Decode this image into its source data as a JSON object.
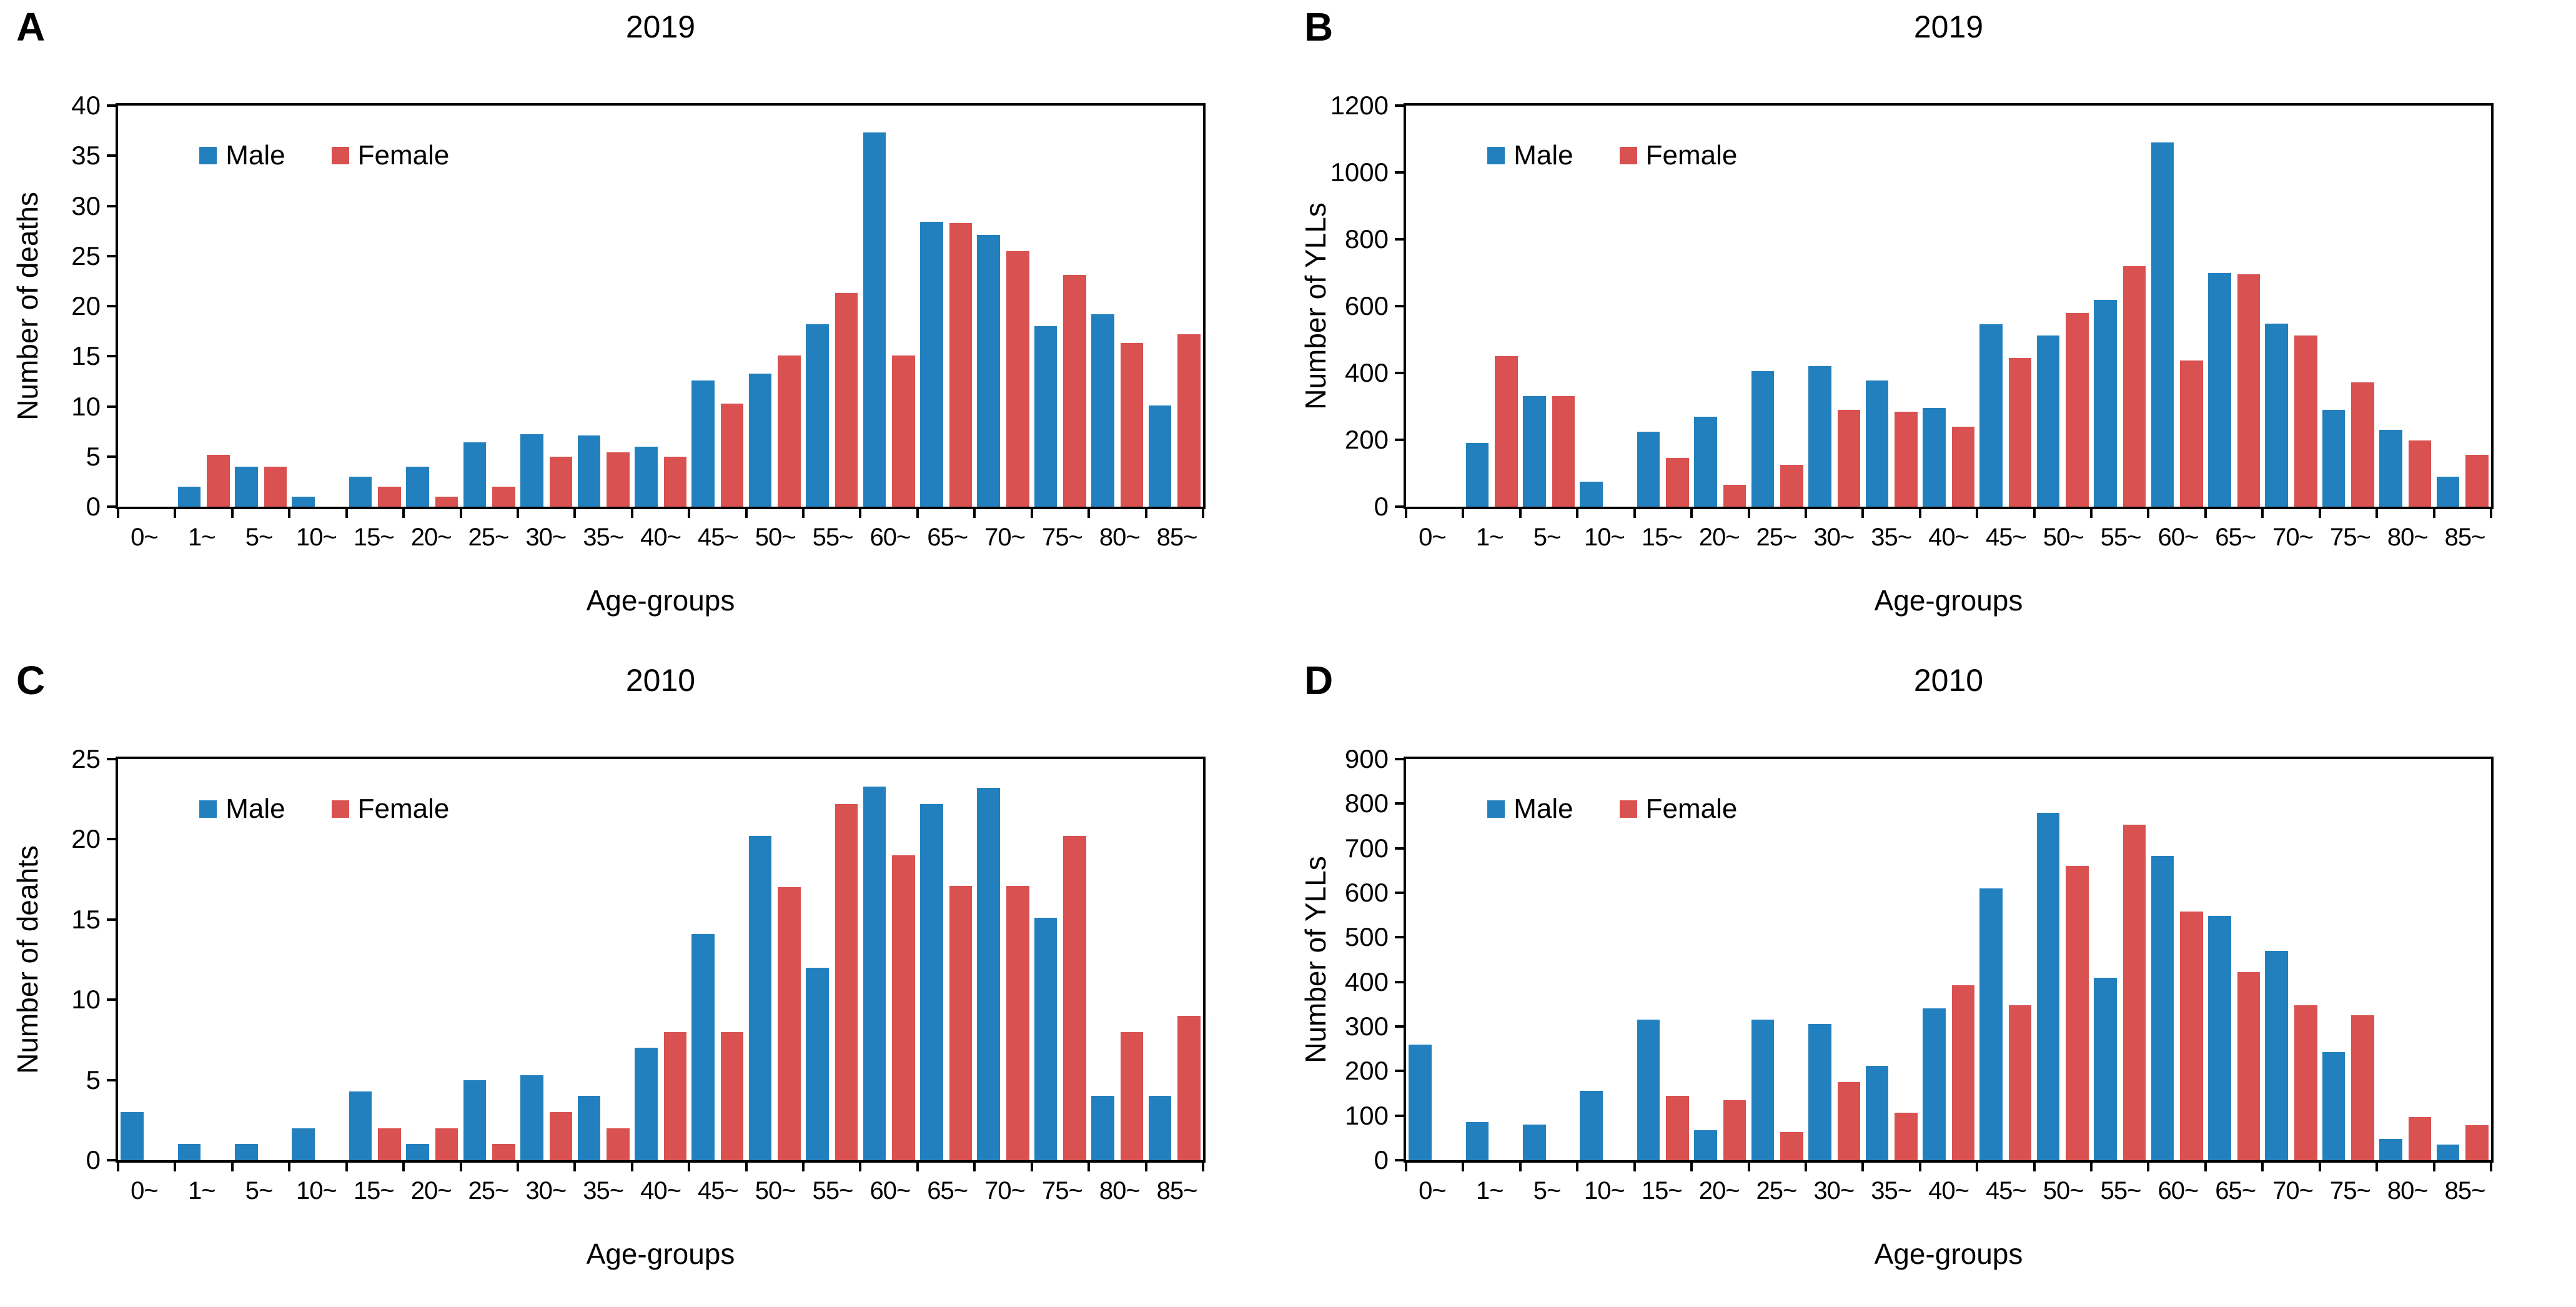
{
  "figure": {
    "colors": {
      "male": "#2380BE",
      "female": "#D95150",
      "axis": "#000000",
      "background": "#FFFFFF"
    },
    "legend_labels": [
      "Male",
      "Female"
    ]
  },
  "chart_data": [
    {
      "id": "A",
      "panel_letter": "A",
      "type": "bar",
      "title": "2019",
      "ylabel": "Number of deaths",
      "xlabel": "Age-groups",
      "ylim": [
        0,
        40
      ],
      "yticks": [
        0,
        5,
        10,
        15,
        20,
        25,
        30,
        35,
        40
      ],
      "grid": false,
      "legend": [
        "Male",
        "Female"
      ],
      "legend_position": "upper-left",
      "categories": [
        "0~",
        "1~",
        "5~",
        "10~",
        "15~",
        "20~",
        "25~",
        "30~",
        "35~",
        "40~",
        "45~",
        "50~",
        "55~",
        "60~",
        "65~",
        "70~",
        "75~",
        "80~",
        "85~"
      ],
      "series": [
        {
          "name": "Male",
          "values": [
            0,
            2,
            4,
            1,
            3,
            4,
            6.4,
            7.2,
            7.1,
            6,
            12.6,
            13.3,
            18.2,
            37.3,
            28.4,
            27.1,
            18,
            19.2,
            10.1
          ]
        },
        {
          "name": "Female",
          "values": [
            0,
            5.2,
            4,
            0,
            2,
            1,
            2,
            5,
            5.4,
            5,
            10.3,
            15.1,
            21.3,
            15.1,
            28.3,
            25.5,
            23.1,
            16.3,
            17.2
          ]
        }
      ]
    },
    {
      "id": "B",
      "panel_letter": "B",
      "type": "bar",
      "title": "2019",
      "ylabel": "Number of YLLs",
      "xlabel": "Age-groups",
      "ylim": [
        0,
        1200
      ],
      "yticks": [
        0,
        200,
        400,
        600,
        800,
        1000,
        1200
      ],
      "grid": false,
      "legend": [
        "Male",
        "Female"
      ],
      "legend_position": "upper-left",
      "categories": [
        "0~",
        "1~",
        "5~",
        "10~",
        "15~",
        "20~",
        "25~",
        "30~",
        "35~",
        "40~",
        "45~",
        "50~",
        "55~",
        "60~",
        "65~",
        "70~",
        "75~",
        "80~",
        "85~"
      ],
      "series": [
        {
          "name": "Male",
          "values": [
            0,
            190,
            330,
            75,
            225,
            270,
            405,
            420,
            378,
            295,
            545,
            512,
            618,
            1090,
            700,
            548,
            290,
            230,
            90
          ]
        },
        {
          "name": "Female",
          "values": [
            0,
            450,
            330,
            0,
            145,
            65,
            125,
            290,
            285,
            240,
            445,
            580,
            720,
            438,
            695,
            513,
            372,
            198,
            155
          ]
        }
      ]
    },
    {
      "id": "C",
      "panel_letter": "C",
      "type": "bar",
      "title": "2010",
      "ylabel": "Number of deahts",
      "xlabel": "Age-groups",
      "ylim": [
        0,
        25
      ],
      "yticks": [
        0,
        5,
        10,
        15,
        20,
        25
      ],
      "grid": false,
      "legend": [
        "Male",
        "Female"
      ],
      "legend_position": "upper-left",
      "categories": [
        "0~",
        "1~",
        "5~",
        "10~",
        "15~",
        "20~",
        "25~",
        "30~",
        "35~",
        "40~",
        "45~",
        "50~",
        "55~",
        "60~",
        "65~",
        "70~",
        "75~",
        "80~",
        "85~"
      ],
      "series": [
        {
          "name": "Male",
          "values": [
            3,
            1,
            1,
            2,
            4.3,
            1,
            5,
            5.3,
            4,
            7,
            14.1,
            20.2,
            12,
            23.3,
            22.2,
            23.2,
            15.1,
            4,
            4
          ]
        },
        {
          "name": "Female",
          "values": [
            0,
            0,
            0,
            0,
            2,
            2,
            1,
            3,
            2,
            8,
            8,
            17,
            22.2,
            19,
            17.1,
            17.1,
            20.2,
            8,
            9
          ]
        }
      ]
    },
    {
      "id": "D",
      "panel_letter": "D",
      "type": "bar",
      "title": "2010",
      "ylabel": "Number of YLLs",
      "xlabel": "Age-groups",
      "ylim": [
        0,
        900
      ],
      "yticks": [
        0,
        100,
        200,
        300,
        400,
        500,
        600,
        700,
        800,
        900
      ],
      "grid": false,
      "legend": [
        "Male",
        "Female"
      ],
      "legend_position": "upper-left",
      "categories": [
        "0~",
        "1~",
        "5~",
        "10~",
        "15~",
        "20~",
        "25~",
        "30~",
        "35~",
        "40~",
        "45~",
        "50~",
        "55~",
        "60~",
        "65~",
        "70~",
        "75~",
        "80~",
        "85~"
      ],
      "series": [
        {
          "name": "Male",
          "values": [
            260,
            85,
            80,
            155,
            315,
            68,
            315,
            305,
            212,
            340,
            610,
            780,
            410,
            683,
            548,
            470,
            243,
            48,
            35
          ]
        },
        {
          "name": "Female",
          "values": [
            0,
            0,
            0,
            0,
            145,
            135,
            63,
            175,
            107,
            392,
            348,
            660,
            753,
            558,
            422,
            348,
            325,
            97,
            78
          ]
        }
      ]
    }
  ]
}
